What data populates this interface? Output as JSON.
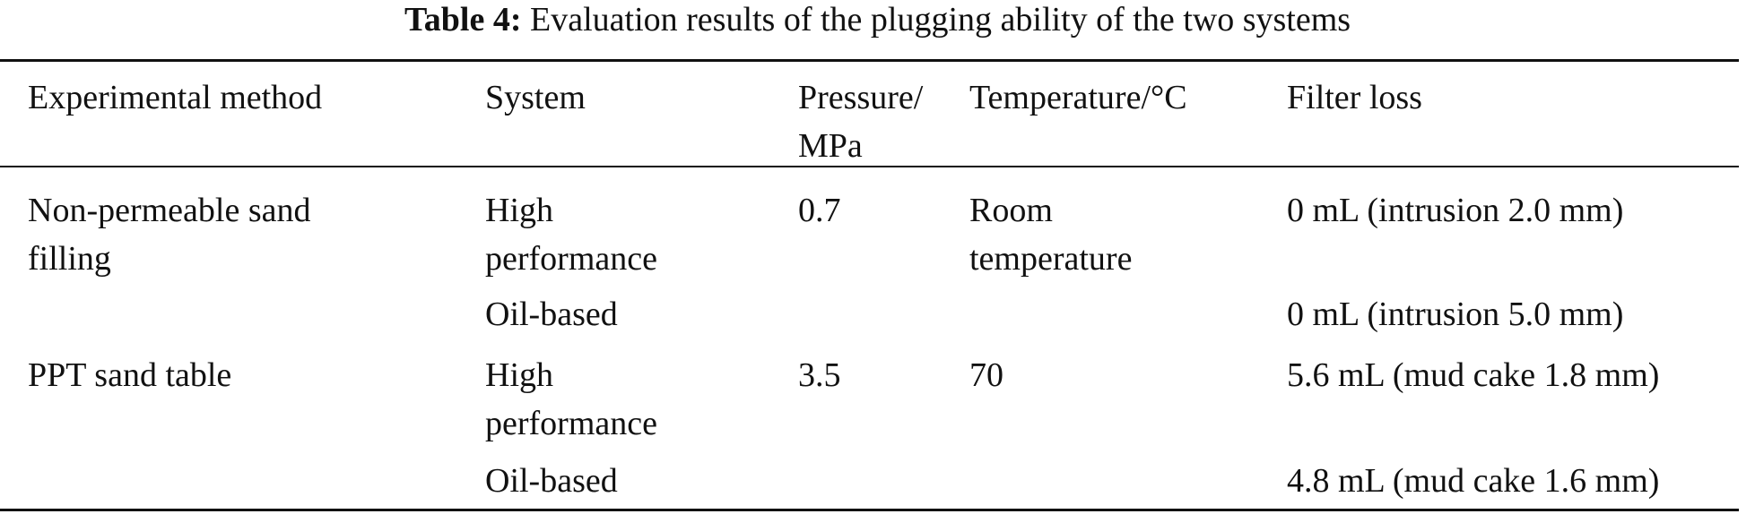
{
  "caption": {
    "label": "Table 4:",
    "text": "Evaluation results of the plugging ability of the two systems"
  },
  "table": {
    "headers": [
      "Experimental method",
      "System",
      "Pressure/\nMPa",
      "Temperature/°C",
      "Filter loss"
    ],
    "rows": [
      [
        "Non-permeable sand\nfilling",
        "High\nperformance",
        "0.7",
        "Room\ntemperature",
        "0 mL (intrusion 2.0 mm)"
      ],
      [
        "",
        "Oil-based",
        "",
        "",
        "0 mL (intrusion 5.0 mm)"
      ],
      [
        "PPT sand table",
        "High\nperformance",
        "3.5",
        "70",
        "5.6 mL (mud cake 1.8 mm)"
      ],
      [
        "",
        "Oil-based",
        "",
        "",
        "4.8 mL (mud cake 1.6 mm)"
      ]
    ]
  }
}
